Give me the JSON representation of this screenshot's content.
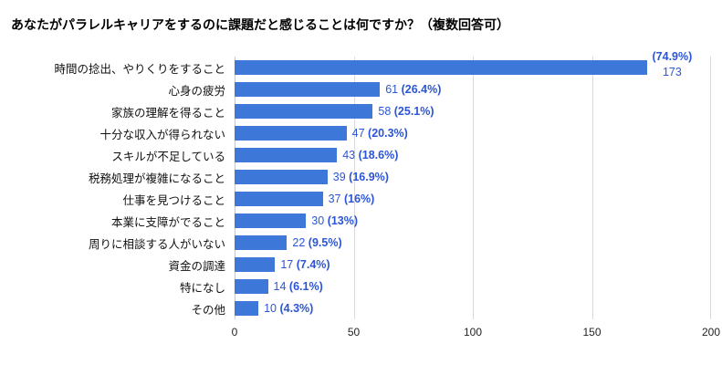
{
  "title": "あなたがパラレルキャリアをするのに課題だと感じることは何ですか？（複数回答可）",
  "chart_data": {
    "type": "bar",
    "orientation": "horizontal",
    "title": "あなたがパラレルキャリアをするのに課題だと感じることは何ですか？（複数回答可）",
    "categories": [
      "時間の捻出、やりくりをすること",
      "心身の疲労",
      "家族の理解を得ること",
      "十分な収入が得られない",
      "スキルが不足している",
      "税務処理が複雑になること",
      "仕事を見つけること",
      "本業に支障がでること",
      "周りに相談する人がいない",
      "資金の調達",
      "特になし",
      "その他"
    ],
    "values": [
      173,
      61,
      58,
      47,
      43,
      39,
      37,
      30,
      22,
      17,
      14,
      10
    ],
    "percents": [
      74.9,
      26.4,
      25.1,
      20.3,
      18.6,
      16.9,
      16,
      13,
      9.5,
      7.4,
      6.1,
      4.3
    ],
    "percent_labels": [
      "(74.9%)",
      "(26.4%)",
      "(25.1%)",
      "(20.3%)",
      "(18.6%)",
      "(16.9%)",
      "(16%)",
      "(13%)",
      "(9.5%)",
      "(7.4%)",
      "(6.1%)",
      "(4.3%)"
    ],
    "xlabel": "",
    "ylabel": "",
    "xlim": [
      0,
      200
    ],
    "x_ticks": [
      0,
      50,
      100,
      150,
      200
    ],
    "grid": "vertical",
    "legend": "none",
    "bar_color": "#3d78d8",
    "label_color": "#2b55d6"
  }
}
